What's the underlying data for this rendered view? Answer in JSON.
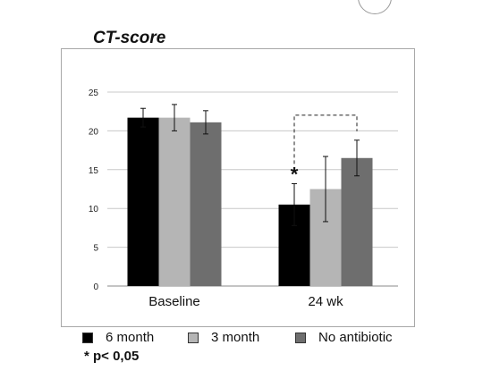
{
  "chart_data": {
    "type": "bar",
    "title": "CT-score",
    "categories": [
      "Baseline",
      "24 wk"
    ],
    "series": [
      {
        "name": "6 month",
        "color": "#000000",
        "values": [
          21.7,
          10.5
        ],
        "error": [
          1.2,
          2.7
        ]
      },
      {
        "name": "3 month",
        "color": "#b5b5b5",
        "values": [
          21.7,
          12.5
        ],
        "error": [
          1.7,
          4.2
        ]
      },
      {
        "name": "No antibiotic",
        "color": "#6e6e6e",
        "values": [
          21.1,
          16.5
        ],
        "error": [
          1.5,
          2.3
        ]
      }
    ],
    "ylim": [
      0,
      25
    ],
    "yticks": [
      0,
      5,
      10,
      15,
      20,
      25
    ],
    "grid": true,
    "legend_position": "bottom",
    "annotations": {
      "significance_marker": "*",
      "footnote": "* p< 0,05"
    }
  }
}
